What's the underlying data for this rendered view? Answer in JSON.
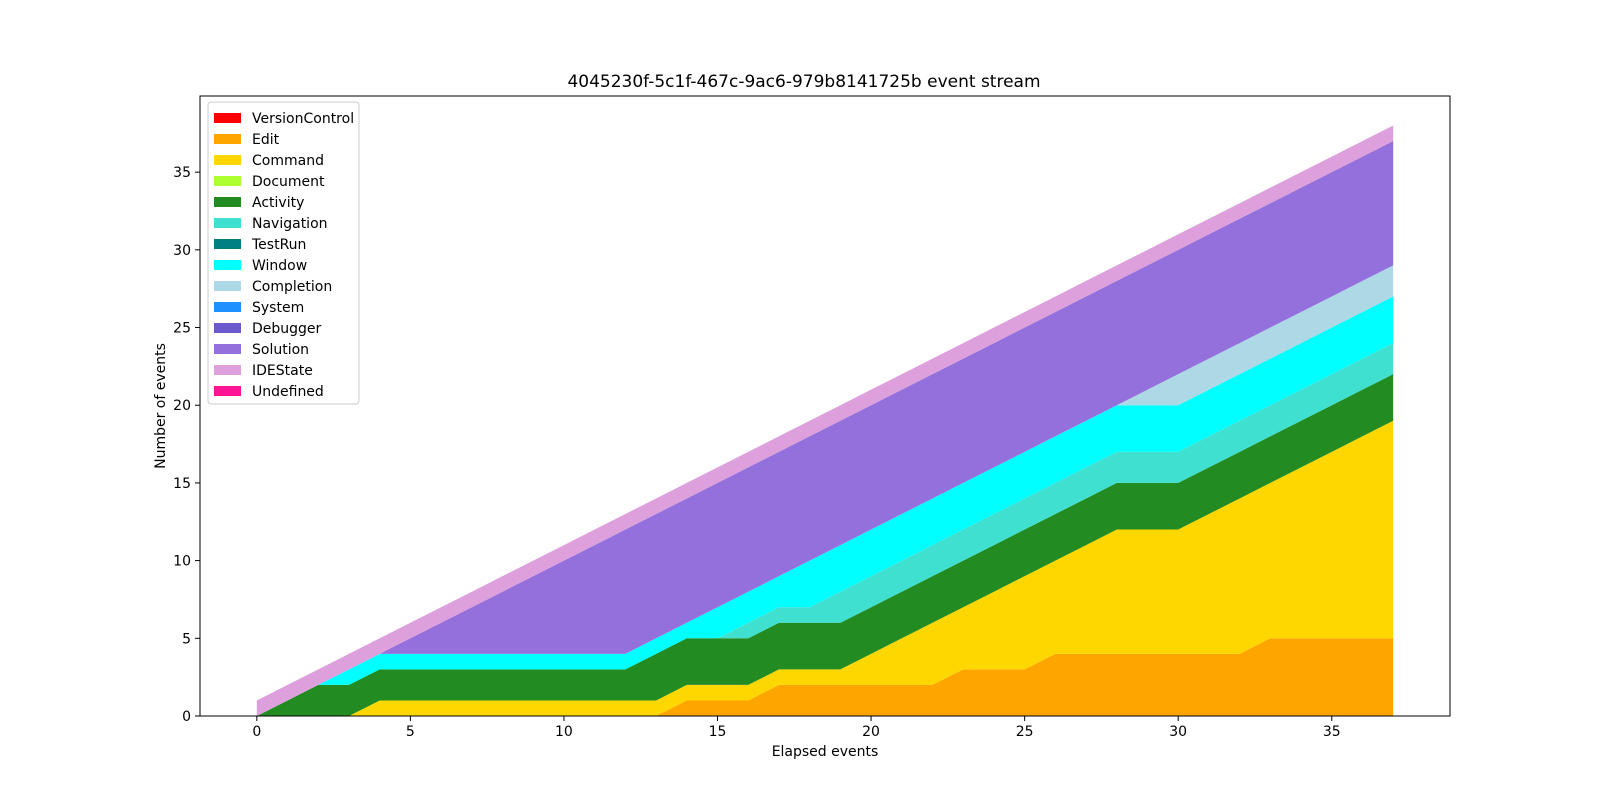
{
  "chart_data": {
    "type": "area",
    "title": "4045230f-5c1f-467c-9ac6-979b8141725b event stream",
    "xlabel": "Elapsed events",
    "ylabel": "Number of events",
    "xlim": [
      -1.85,
      38.85
    ],
    "ylim": [
      0,
      39.9
    ],
    "x_ticks": [
      0,
      5,
      10,
      15,
      20,
      25,
      30,
      35
    ],
    "y_ticks": [
      0,
      5,
      10,
      15,
      20,
      25,
      30,
      35
    ],
    "legend_placement": "upper-left",
    "grid": false,
    "x": [
      0,
      1,
      2,
      3,
      4,
      5,
      6,
      7,
      8,
      9,
      10,
      11,
      12,
      13,
      14,
      15,
      16,
      17,
      18,
      19,
      20,
      21,
      22,
      23,
      24,
      25,
      26,
      27,
      28,
      29,
      30,
      31,
      32,
      33,
      34,
      35,
      36,
      37
    ],
    "series": [
      {
        "name": "VersionControl",
        "color": "#ff0000",
        "values": [
          0,
          0,
          0,
          0,
          0,
          0,
          0,
          0,
          0,
          0,
          0,
          0,
          0,
          0,
          0,
          0,
          0,
          0,
          0,
          0,
          0,
          0,
          0,
          0,
          0,
          0,
          0,
          0,
          0,
          0,
          0,
          0,
          0,
          0,
          0,
          0,
          0,
          0
        ]
      },
      {
        "name": "Edit",
        "color": "#ffa500",
        "values": [
          0,
          0,
          0,
          0,
          0,
          0,
          0,
          0,
          0,
          0,
          0,
          0,
          0,
          0,
          1,
          1,
          1,
          2,
          2,
          2,
          2,
          2,
          2,
          3,
          3,
          3,
          4,
          4,
          4,
          4,
          4,
          4,
          4,
          5,
          5,
          5,
          5,
          5
        ]
      },
      {
        "name": "Command",
        "color": "#ffd700",
        "values": [
          0,
          0,
          0,
          0,
          1,
          1,
          1,
          1,
          1,
          1,
          1,
          1,
          1,
          1,
          1,
          1,
          1,
          1,
          1,
          1,
          2,
          3,
          4,
          4,
          5,
          6,
          6,
          7,
          8,
          8,
          8,
          9,
          10,
          10,
          11,
          12,
          13,
          14
        ]
      },
      {
        "name": "Document",
        "color": "#adff2f",
        "values": [
          0,
          0,
          0,
          0,
          0,
          0,
          0,
          0,
          0,
          0,
          0,
          0,
          0,
          0,
          0,
          0,
          0,
          0,
          0,
          0,
          0,
          0,
          0,
          0,
          0,
          0,
          0,
          0,
          0,
          0,
          0,
          0,
          0,
          0,
          0,
          0,
          0,
          0
        ]
      },
      {
        "name": "Activity",
        "color": "#228b22",
        "values": [
          0,
          1,
          2,
          2,
          2,
          2,
          2,
          2,
          2,
          2,
          2,
          2,
          2,
          3,
          3,
          3,
          3,
          3,
          3,
          3,
          3,
          3,
          3,
          3,
          3,
          3,
          3,
          3,
          3,
          3,
          3,
          3,
          3,
          3,
          3,
          3,
          3,
          3
        ]
      },
      {
        "name": "Navigation",
        "color": "#40e0d0",
        "values": [
          0,
          0,
          0,
          0,
          0,
          0,
          0,
          0,
          0,
          0,
          0,
          0,
          0,
          0,
          0,
          0,
          1,
          1,
          1,
          2,
          2,
          2,
          2,
          2,
          2,
          2,
          2,
          2,
          2,
          2,
          2,
          2,
          2,
          2,
          2,
          2,
          2,
          2
        ]
      },
      {
        "name": "TestRun",
        "color": "#008080",
        "values": [
          0,
          0,
          0,
          0,
          0,
          0,
          0,
          0,
          0,
          0,
          0,
          0,
          0,
          0,
          0,
          0,
          0,
          0,
          0,
          0,
          0,
          0,
          0,
          0,
          0,
          0,
          0,
          0,
          0,
          0,
          0,
          0,
          0,
          0,
          0,
          0,
          0,
          0
        ]
      },
      {
        "name": "Window",
        "color": "#00ffff",
        "values": [
          0,
          0,
          0,
          1,
          1,
          1,
          1,
          1,
          1,
          1,
          1,
          1,
          1,
          1,
          1,
          2,
          2,
          2,
          3,
          3,
          3,
          3,
          3,
          3,
          3,
          3,
          3,
          3,
          3,
          3,
          3,
          3,
          3,
          3,
          3,
          3,
          3,
          3
        ]
      },
      {
        "name": "Completion",
        "color": "#add8e6",
        "values": [
          0,
          0,
          0,
          0,
          0,
          0,
          0,
          0,
          0,
          0,
          0,
          0,
          0,
          0,
          0,
          0,
          0,
          0,
          0,
          0,
          0,
          0,
          0,
          0,
          0,
          0,
          0,
          0,
          0,
          1,
          2,
          2,
          2,
          2,
          2,
          2,
          2,
          2
        ]
      },
      {
        "name": "System",
        "color": "#1e90ff",
        "values": [
          0,
          0,
          0,
          0,
          0,
          0,
          0,
          0,
          0,
          0,
          0,
          0,
          0,
          0,
          0,
          0,
          0,
          0,
          0,
          0,
          0,
          0,
          0,
          0,
          0,
          0,
          0,
          0,
          0,
          0,
          0,
          0,
          0,
          0,
          0,
          0,
          0,
          0
        ]
      },
      {
        "name": "Debugger",
        "color": "#6a5acd",
        "values": [
          0,
          0,
          0,
          0,
          0,
          0,
          0,
          0,
          0,
          0,
          0,
          0,
          0,
          0,
          0,
          0,
          0,
          0,
          0,
          0,
          0,
          0,
          0,
          0,
          0,
          0,
          0,
          0,
          0,
          0,
          0,
          0,
          0,
          0,
          0,
          0,
          0,
          0
        ]
      },
      {
        "name": "Solution",
        "color": "#9370db",
        "values": [
          0,
          0,
          0,
          0,
          0,
          1,
          2,
          3,
          4,
          5,
          6,
          7,
          8,
          8,
          8,
          8,
          8,
          8,
          8,
          8,
          8,
          8,
          8,
          8,
          8,
          8,
          8,
          8,
          8,
          8,
          8,
          8,
          8,
          8,
          8,
          8,
          8,
          8
        ]
      },
      {
        "name": "IDEState",
        "color": "#dda0dd",
        "values": [
          1,
          1,
          1,
          1,
          1,
          1,
          1,
          1,
          1,
          1,
          1,
          1,
          1,
          1,
          1,
          1,
          1,
          1,
          1,
          1,
          1,
          1,
          1,
          1,
          1,
          1,
          1,
          1,
          1,
          1,
          1,
          1,
          1,
          1,
          1,
          1,
          1,
          1
        ]
      },
      {
        "name": " Undefined",
        "color": "#ff1493",
        "values": [
          0,
          0,
          0,
          0,
          0,
          0,
          0,
          0,
          0,
          0,
          0,
          0,
          0,
          0,
          0,
          0,
          0,
          0,
          0,
          0,
          0,
          0,
          0,
          0,
          0,
          0,
          0,
          0,
          0,
          0,
          0,
          0,
          0,
          0,
          0,
          0,
          0,
          0
        ]
      }
    ]
  }
}
